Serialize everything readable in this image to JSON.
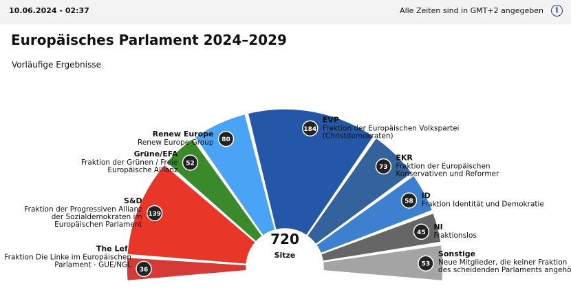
{
  "header": {
    "date": "10.06.2024 - 02:37",
    "timezone_note": "Alle Zeiten sind in GMT+2 angegeben",
    "info_glyph": "i"
  },
  "title": "Europäisches Parlament 2024–2029",
  "subtitle": "Vorläufige Ergebnisse",
  "chart_data": {
    "type": "pie",
    "subtype": "parliament-semicircle",
    "total": 720,
    "total_label": "Sitze",
    "series": [
      {
        "name": "The Left",
        "description": "Fraktion Die Linke im Europäischen Parlament - GUE/NGL",
        "value": 36,
        "color": "#d63a36",
        "label_side": "left"
      },
      {
        "name": "S&D",
        "description": "Fraktion der Progressiven Allianz der Sozialdemokraten im Europäischen Parlament",
        "value": 139,
        "color": "#e83728",
        "label_side": "left"
      },
      {
        "name": "Grüne/EFA",
        "description": "Fraktion der Grünen / Freie Europäische Allianz",
        "value": 52,
        "color": "#3a8a2b",
        "label_side": "left"
      },
      {
        "name": "Renew Europe",
        "description": "Renew Europe Group",
        "value": 80,
        "color": "#4aa3f5",
        "label_side": "left"
      },
      {
        "name": "EVP",
        "description": "Fraktion der Europäischen Volkspartei (Christdemokraten)",
        "value": 184,
        "color": "#2457a8",
        "label_side": "right"
      },
      {
        "name": "EKR",
        "description": "Fraktion der Europäischen Konservativen und Reformer",
        "value": 73,
        "color": "#33629c",
        "label_side": "right"
      },
      {
        "name": "ID",
        "description": "Fraktion Identität und Demokratie",
        "value": 58,
        "color": "#3d80cf",
        "label_side": "right"
      },
      {
        "name": "NI",
        "description": "Fraktionslos",
        "value": 45,
        "color": "#666666",
        "label_side": "right"
      },
      {
        "name": "Sonstige",
        "description": "Neue Mitglieder, die keiner Fraktion des scheidenden Parlaments angehören",
        "value": 53,
        "color": "#a4a4a4",
        "label_side": "right"
      }
    ]
  }
}
